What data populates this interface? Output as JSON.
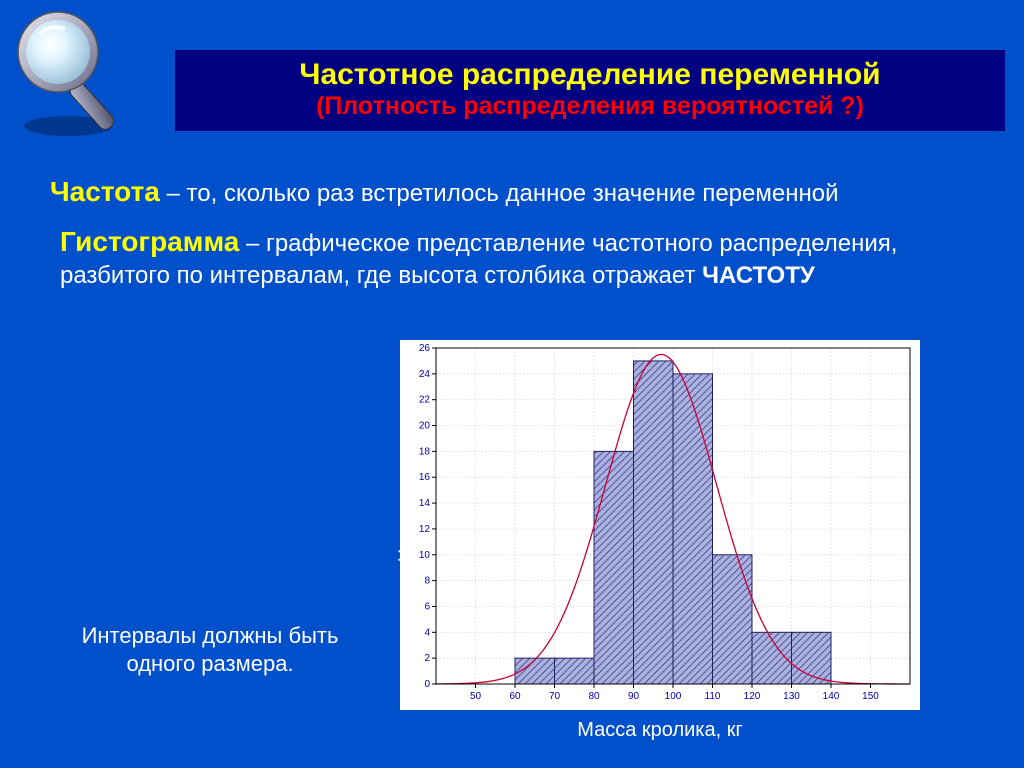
{
  "title": {
    "line1": "Частотное распределение переменной",
    "line2": "(Плотность распределения вероятностей ?)"
  },
  "def1": {
    "term": "Частота",
    "text": " – то, сколько раз встретилось данное значение переменной"
  },
  "def2": {
    "term": "Гистограмма",
    "text_a": " – графическое представление частотного распределения, разбитого по интервалам, где высота столбика отражает ",
    "text_b": "ЧАСТОТУ"
  },
  "note": "Интервалы должны быть одного размера.",
  "chart": {
    "type": "histogram_with_curve",
    "ylabel": "Частота",
    "xlabel": "Масса кролика, кг",
    "background": "#ffffff",
    "plot_bg": "#ffffff",
    "grid_color": "#d0d0d0",
    "axis_color": "#000000",
    "tick_fontsize": 10,
    "tick_color": "#0000aa",
    "xlim": [
      40,
      160
    ],
    "ylim": [
      0,
      26
    ],
    "xticks": [
      50,
      60,
      70,
      80,
      90,
      100,
      110,
      120,
      130,
      140,
      150
    ],
    "yticks": [
      0,
      2,
      4,
      6,
      8,
      10,
      12,
      14,
      16,
      18,
      20,
      22,
      24,
      26
    ],
    "bars": {
      "bin_width": 10,
      "left_edges": [
        60,
        70,
        80,
        90,
        100,
        110,
        120,
        130
      ],
      "heights": [
        2,
        2,
        18,
        25,
        24,
        10,
        4,
        4
      ],
      "fill": "#a9b1e3",
      "hatch": "diag",
      "hatch_color": "#4a4a80",
      "stroke": "#202060",
      "stroke_width": 1
    },
    "curve": {
      "color": "#cc0033",
      "width": 1.3,
      "mu": 97,
      "sigma": 14,
      "peak": 25.5
    }
  },
  "colors": {
    "page_bg": "#0050cc",
    "title_bg": "#000080",
    "title_fg1": "#ffff00",
    "title_fg2": "#ff0000",
    "body_text": "#ffffff",
    "term": "#ffff00"
  }
}
